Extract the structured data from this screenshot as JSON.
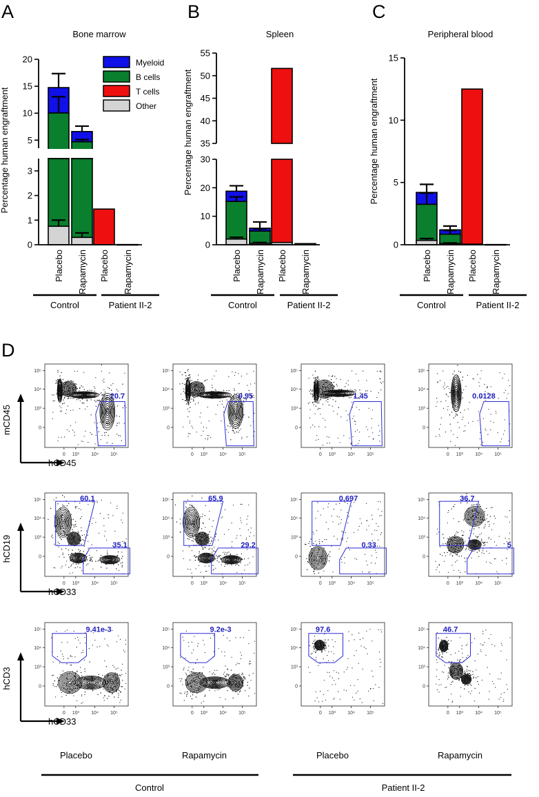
{
  "panels": {
    "A": {
      "letter": "A",
      "title": "Bone marrow",
      "ylabel": "Percentage human engraftment"
    },
    "B": {
      "letter": "B",
      "title": "Spleen",
      "ylabel": "Percentage human engraftment"
    },
    "C": {
      "letter": "C",
      "title": "Peripheral blood",
      "ylabel": "Percentage human engraftment"
    },
    "D": {
      "letter": "D"
    }
  },
  "legend": [
    {
      "label": "Myeloid",
      "color": "#1010e8"
    },
    {
      "label": "B cells",
      "color": "#0a7f2e"
    },
    {
      "label": "T cells",
      "color": "#ee1010"
    },
    {
      "label": "Other",
      "color": "#d4d4d4"
    }
  ],
  "chart_data": [
    {
      "type": "bar",
      "stacked": true,
      "title": "Bone marrow",
      "ylabel": "Percentage human engraftment",
      "ylim": [
        0,
        20
      ],
      "broken_axis": {
        "lower": [
          0,
          3.5
        ],
        "upper": [
          3.5,
          20
        ]
      },
      "yticks_lower": [
        "0",
        "1",
        "2",
        "3"
      ],
      "yticks_upper": [
        "5",
        "10",
        "15",
        "20"
      ],
      "categories": [
        "Placebo",
        "Rapamycin",
        "Placebo",
        "Rapamycin"
      ],
      "groups": [
        {
          "label": "Control",
          "members": [
            0,
            1
          ]
        },
        {
          "label": "Patient II-2",
          "members": [
            2,
            3
          ]
        }
      ],
      "series": [
        {
          "name": "Other",
          "color": "#d4d4d4",
          "values": [
            0.75,
            0.3,
            0,
            0
          ]
        },
        {
          "name": "B cells",
          "color": "#0a7f2e",
          "values": [
            9.3,
            4.4,
            0,
            0
          ]
        },
        {
          "name": "T cells",
          "color": "#ee1010",
          "values": [
            0,
            0,
            1.45,
            0.01
          ]
        },
        {
          "name": "Myeloid",
          "color": "#1010e8",
          "values": [
            4.7,
            1.9,
            0,
            0
          ]
        }
      ],
      "error_bars": [
        {
          "bar": 0,
          "at": 0.75,
          "err": 0.25
        },
        {
          "bar": 0,
          "at": 10.05,
          "err": 3.0
        },
        {
          "bar": 0,
          "at": 14.75,
          "err": 2.6
        },
        {
          "bar": 1,
          "at": 0.3,
          "err": 0.18
        },
        {
          "bar": 1,
          "at": 4.7,
          "err": 0.4
        },
        {
          "bar": 1,
          "at": 6.6,
          "err": 1.0
        }
      ]
    },
    {
      "type": "bar",
      "stacked": true,
      "title": "Spleen",
      "ylabel": "Percentage human engraftment",
      "ylim": [
        0,
        55
      ],
      "broken_axis": {
        "lower": [
          0,
          30
        ],
        "upper": [
          35,
          55
        ]
      },
      "yticks_lower": [
        "0",
        "10",
        "20",
        "30"
      ],
      "yticks_upper": [
        "35",
        "40",
        "45",
        "50",
        "55"
      ],
      "categories": [
        "Placebo",
        "Rapamycin",
        "Placebo",
        "Rapamycin"
      ],
      "groups": [
        {
          "label": "Control",
          "members": [
            0,
            1
          ]
        },
        {
          "label": "Patient II-2",
          "members": [
            2,
            3
          ]
        }
      ],
      "series": [
        {
          "name": "Other",
          "color": "#d4d4d4",
          "values": [
            2.0,
            0.5,
            0.8,
            0.2
          ]
        },
        {
          "name": "B cells",
          "color": "#0a7f2e",
          "values": [
            13.2,
            4.3,
            0,
            0
          ]
        },
        {
          "name": "T cells",
          "color": "#ee1010",
          "values": [
            0,
            0,
            50.8,
            0.2
          ]
        },
        {
          "name": "Myeloid",
          "color": "#1010e8",
          "values": [
            3.6,
            1.0,
            0,
            0
          ]
        }
      ],
      "error_bars": [
        {
          "bar": 0,
          "at": 2.0,
          "err": 0.6
        },
        {
          "bar": 0,
          "at": 15.2,
          "err": 1.6
        },
        {
          "bar": 0,
          "at": 18.8,
          "err": 1.9
        },
        {
          "bar": 1,
          "at": 0.5,
          "err": 0.3
        },
        {
          "bar": 1,
          "at": 4.8,
          "err": 0.8
        },
        {
          "bar": 1,
          "at": 5.8,
          "err": 2.2
        }
      ]
    },
    {
      "type": "bar",
      "stacked": true,
      "title": "Peripheral blood",
      "ylabel": "Percentage human engraftment",
      "ylim": [
        0,
        15
      ],
      "yticks": [
        "0",
        "5",
        "10",
        "15"
      ],
      "categories": [
        "Placebo",
        "Rapamycin",
        "Placebo",
        "Rapamycin"
      ],
      "groups": [
        {
          "label": "Control",
          "members": [
            0,
            1
          ]
        },
        {
          "label": "Patient II-2",
          "members": [
            2,
            3
          ]
        }
      ],
      "series": [
        {
          "name": "Other",
          "color": "#d4d4d4",
          "values": [
            0.35,
            0.1,
            0.05,
            0
          ]
        },
        {
          "name": "B cells",
          "color": "#0a7f2e",
          "values": [
            2.9,
            0.75,
            0,
            0
          ]
        },
        {
          "name": "T cells",
          "color": "#ee1010",
          "values": [
            0,
            0,
            12.45,
            0.02
          ]
        },
        {
          "name": "Myeloid",
          "color": "#1010e8",
          "values": [
            0.95,
            0.35,
            0,
            0
          ]
        }
      ],
      "error_bars": [
        {
          "bar": 0,
          "at": 0.35,
          "err": 0.15
        },
        {
          "bar": 0,
          "at": 3.25,
          "err": 0.9
        },
        {
          "bar": 0,
          "at": 4.2,
          "err": 0.65
        },
        {
          "bar": 1,
          "at": 0.1,
          "err": 0.05
        },
        {
          "bar": 1,
          "at": 0.85,
          "err": 0.3
        },
        {
          "bar": 1,
          "at": 1.2,
          "err": 0.3
        }
      ]
    },
    {
      "type": "flow-cytometry-grid",
      "rows": [
        {
          "y_axis": "mCD45",
          "x_axis": "hCD45",
          "gate_values": [
            [
              "20.7"
            ],
            [
              "9.95"
            ],
            [
              "1.45"
            ],
            [
              "0.0128"
            ]
          ]
        },
        {
          "y_axis": "hCD19",
          "x_axis": "hCD33",
          "gate_values": [
            [
              "60.1",
              "35.1"
            ],
            [
              "65.9",
              "29.2"
            ],
            [
              "0.697",
              "0.33"
            ],
            [
              "36.7",
              "5"
            ]
          ]
        },
        {
          "y_axis": "hCD3",
          "x_axis": "hCD33",
          "gate_values": [
            [
              "9.41e-3"
            ],
            [
              "9.2e-3"
            ],
            [
              "97.6"
            ],
            [
              "46.7"
            ]
          ]
        }
      ],
      "column_labels": [
        "Placebo",
        "Rapamycin",
        "Placebo",
        "Rapamycin"
      ],
      "group_labels": [
        "Control",
        "Patient II-2"
      ],
      "axis_ticks": {
        "y": [
          "10⁵",
          "10⁴",
          "10³",
          "0"
        ],
        "x": [
          "0",
          "10³",
          "10⁴",
          "10⁵"
        ]
      }
    }
  ],
  "colors": {
    "gate": "#2b2bd6",
    "gate_text": "#2020c0"
  }
}
